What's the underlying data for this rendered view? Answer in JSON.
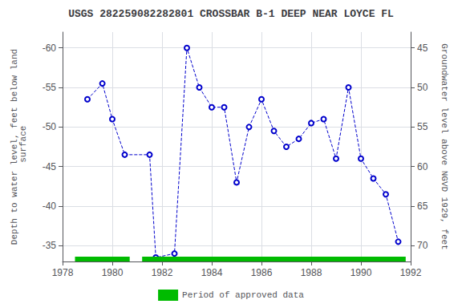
{
  "chart_data": {
    "type": "line",
    "title": "USGS 282259082282801 CROSSBAR B-1 DEEP NEAR LOYCE FL",
    "ylabel": "Depth to water level, feet below land\n surface",
    "y2label": "Groundwater level above NGVD 1929, feet",
    "x": [
      1979.0,
      1979.6,
      1980.0,
      1980.5,
      1981.5,
      1981.75,
      1982.5,
      1983.0,
      1983.5,
      1984.0,
      1984.5,
      1985.0,
      1985.5,
      1986.0,
      1986.5,
      1987.0,
      1987.5,
      1988.0,
      1988.5,
      1989.0,
      1989.5,
      1990.0,
      1990.5,
      1991.0,
      1991.5
    ],
    "series": [
      {
        "type": "line",
        "color": "#0000cc",
        "marker": "circle",
        "line_style": "dashed",
        "values": [
          -53.5,
          -55.5,
          -51.0,
          -46.5,
          -46.5,
          -33.5,
          -34.0,
          -60.0,
          -55.0,
          -52.5,
          -52.5,
          -43.0,
          -50.0,
          -53.5,
          -49.5,
          -47.5,
          -48.5,
          -50.5,
          -51.0,
          -46.0,
          -55.0,
          -46.0,
          -43.5,
          -41.5,
          -35.5
        ]
      },
      {
        "type": "band",
        "name": "Period of approved data",
        "color": "#00bb00",
        "periods": [
          [
            1978.5,
            1980.7
          ],
          [
            1981.2,
            1991.8
          ]
        ]
      }
    ],
    "xlim": [
      1978,
      1992
    ],
    "xticks": [
      1978,
      1980,
      1982,
      1984,
      1986,
      1988,
      1990,
      1992
    ],
    "ylim": [
      -33,
      -62
    ],
    "yticks": [
      -60,
      -55,
      -50,
      -45,
      -40,
      -35
    ],
    "y2lim": [
      72,
      43
    ],
    "y2ticks": [
      70,
      65,
      60,
      55,
      50,
      45
    ],
    "grid": true,
    "legend": "bottom"
  }
}
